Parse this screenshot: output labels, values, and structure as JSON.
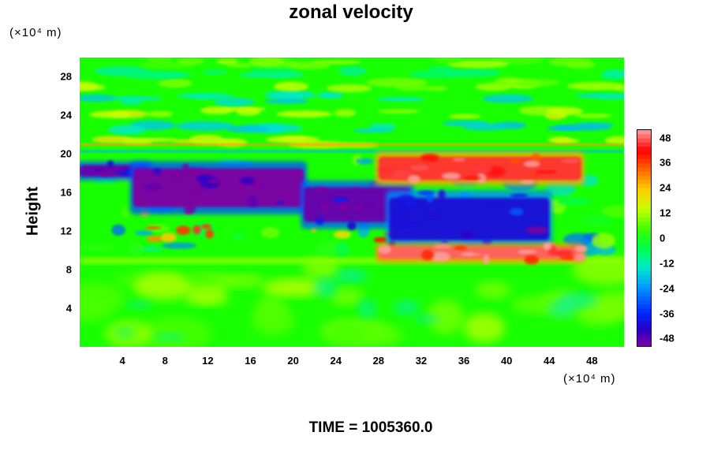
{
  "chart_data": {
    "type": "heatmap",
    "title": "zonal velocity",
    "ylabel": "Height",
    "xunit": "(×10⁴ m)",
    "yunit": "(×10⁴ m)",
    "xlim": [
      0,
      51
    ],
    "ylim": [
      0,
      30
    ],
    "xticks": [
      "4",
      "8",
      "12",
      "16",
      "20",
      "24",
      "28",
      "32",
      "36",
      "40",
      "44",
      "48"
    ],
    "yticks": [
      "4",
      "8",
      "12",
      "16",
      "20",
      "24",
      "28"
    ],
    "colorbar": {
      "ticks": [
        "48",
        "36",
        "24",
        "12",
        "0",
        "-12",
        "-24",
        "-36",
        "-48"
      ],
      "range": [
        -52,
        52
      ]
    },
    "features": [
      {
        "x": [
          0,
          6.5
        ],
        "y": [
          17.5,
          19
        ],
        "value": -50
      },
      {
        "x": [
          5,
          21
        ],
        "y": [
          14,
          19
        ],
        "value": -52
      },
      {
        "x": [
          21,
          31
        ],
        "y": [
          12.5,
          17
        ],
        "value": -50
      },
      {
        "x": [
          29,
          44
        ],
        "y": [
          10.5,
          16
        ],
        "value": -42
      },
      {
        "x": [
          28,
          47
        ],
        "y": [
          17,
          20
        ],
        "value": 45
      },
      {
        "x": [
          28,
          47
        ],
        "y": [
          9,
          10.5
        ],
        "value": 48
      }
    ],
    "time_label": "TIME = 1005360.0"
  },
  "colors": {
    "background": "#ffffff",
    "field_base": "#00ff00"
  }
}
